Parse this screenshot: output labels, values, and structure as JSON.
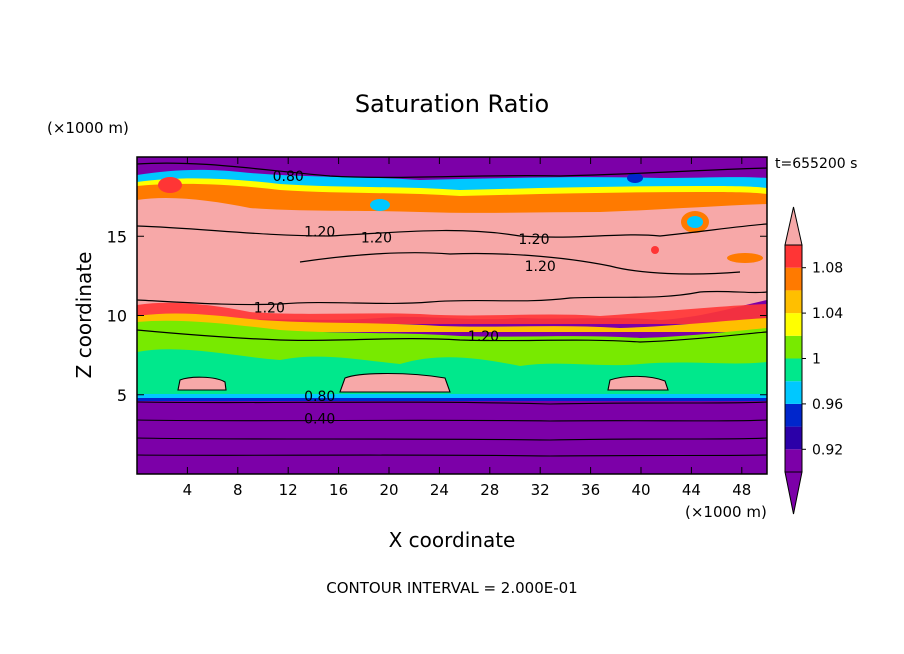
{
  "chart_data": {
    "type": "heatmap",
    "title": "Saturation Ratio",
    "xlabel": "X coordinate",
    "ylabel": "Z coordinate",
    "x_unit_label": "(×1000 m)",
    "y_unit_label": "(×1000 m)",
    "time_label": "t=655200 s",
    "footer": "CONTOUR INTERVAL = 2.000E-01",
    "xlim": [
      0,
      50
    ],
    "ylim": [
      0,
      20
    ],
    "x_ticks": [
      4,
      8,
      12,
      16,
      20,
      24,
      28,
      32,
      36,
      40,
      44,
      48
    ],
    "y_ticks": [
      5,
      10,
      15
    ],
    "colorbar": {
      "levels": [
        0.9,
        0.92,
        0.94,
        0.96,
        0.98,
        1.0,
        1.02,
        1.04,
        1.06,
        1.08,
        1.1
      ],
      "colors": [
        "#7c00a8",
        "#2b00a8",
        "#0026cc",
        "#00c8ff",
        "#00e88c",
        "#78ea00",
        "#ffff00",
        "#ffbf00",
        "#ff7a00",
        "#ff3535",
        "#f7a8a8"
      ],
      "tick_labels": [
        "0.92",
        "0.96",
        "1",
        "1.04",
        "1.08"
      ],
      "tick_values": [
        0.92,
        0.96,
        1.0,
        1.04,
        1.08
      ],
      "extend": "both"
    },
    "contour_labels": [
      {
        "text": "0.80",
        "x": 12.0,
        "z": 18.5
      },
      {
        "text": "1.20",
        "x": 14.5,
        "z": 15.0
      },
      {
        "text": "1.20",
        "x": 19.0,
        "z": 14.6
      },
      {
        "text": "1.20",
        "x": 31.5,
        "z": 14.5
      },
      {
        "text": "1.20",
        "x": 32.0,
        "z": 12.8
      },
      {
        "text": "1.20",
        "x": 10.5,
        "z": 10.2
      },
      {
        "text": "1.20",
        "x": 27.5,
        "z": 8.4
      },
      {
        "text": "0.80",
        "x": 14.5,
        "z": 4.6
      },
      {
        "text": "0.40",
        "x": 14.5,
        "z": 3.2
      }
    ]
  }
}
